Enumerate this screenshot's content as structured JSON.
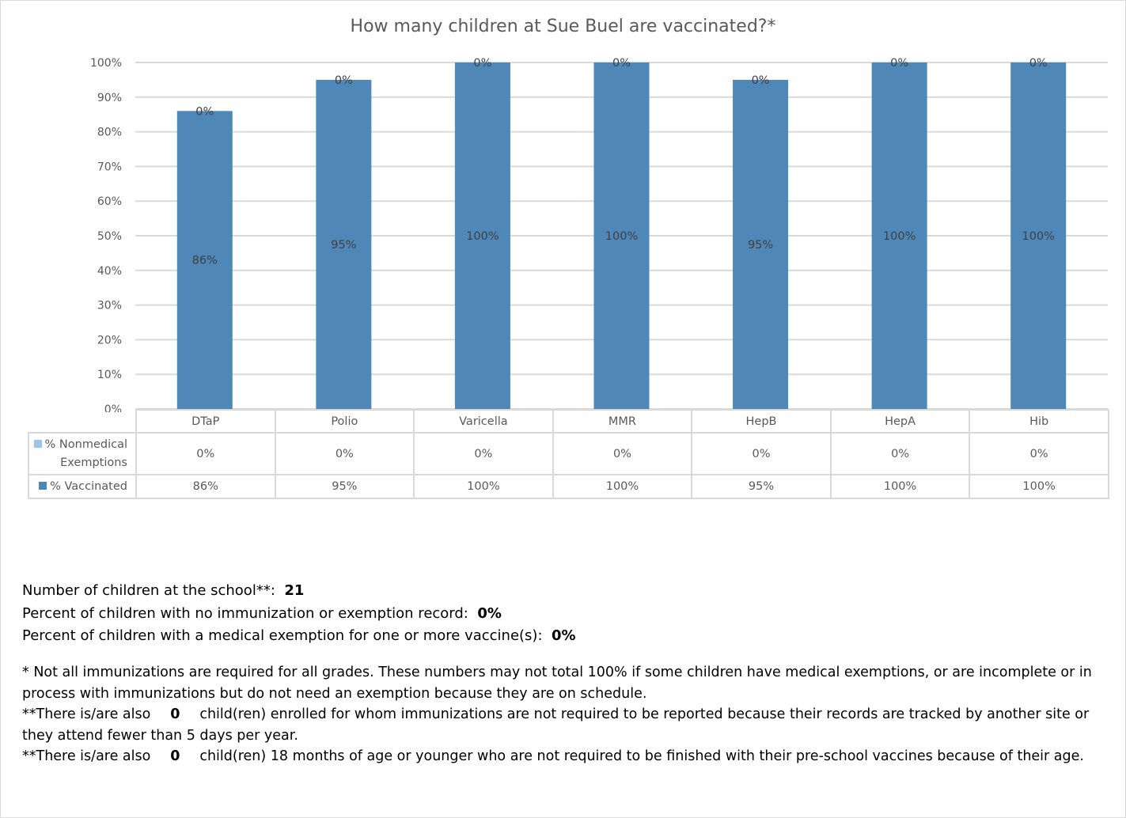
{
  "chart_data": {
    "type": "bar",
    "stacked": true,
    "title": "How many children at Sue Buel are vaccinated?*",
    "categories": [
      "DTaP",
      "Polio",
      "Varicella",
      "MMR",
      "HepB",
      "HepA",
      "Hib"
    ],
    "series": [
      {
        "name": "% Vaccinated",
        "values": [
          86,
          95,
          100,
          100,
          95,
          100,
          100
        ],
        "labels": [
          "86%",
          "95%",
          "100%",
          "100%",
          "95%",
          "100%",
          "100%"
        ],
        "color": "#4f87b9"
      },
      {
        "name": "% Nonmedical Exemptions",
        "values": [
          0,
          0,
          0,
          0,
          0,
          0,
          0
        ],
        "labels": [
          "0%",
          "0%",
          "0%",
          "0%",
          "0%",
          "0%",
          "0%"
        ],
        "color": "#9dc3e6"
      }
    ],
    "ylim": [
      0,
      100
    ],
    "yticks": [
      "0%",
      "10%",
      "20%",
      "30%",
      "40%",
      "50%",
      "60%",
      "70%",
      "80%",
      "90%",
      "100%"
    ],
    "grid": true,
    "legend": "data-table"
  },
  "legend_labels": {
    "nonmed_line1": "% Nonmedical",
    "nonmed_line2": "Exemptions",
    "vacc": "% Vaccinated"
  },
  "stats": {
    "children_label": "Number of children at the school**:",
    "children_value": "21",
    "no_record_label": "Percent of children with no immunization or exemption record:",
    "no_record_value": "0%",
    "medical_label": "Percent of children with a medical exemption for one or more vaccine(s):",
    "medical_value": "0%"
  },
  "footnotes": {
    "f1": "* Not all immunizations are required for all grades. These numbers may not total 100% if some children have medical exemptions, or are incomplete or in process with immunizations but do not need an exemption because they are on schedule.",
    "f2_prefix": "**There is/are also",
    "f2_value": "0",
    "f2_text": "child(ren) enrolled for whom immunizations are not required to be reported because their records are tracked by another site or they attend fewer than 5 days per year.",
    "f3_prefix": "**There is/are also",
    "f3_value": "0",
    "f3_text": "child(ren) 18 months of age or younger who are not required to be finished with their pre-school vaccines because of their age."
  }
}
